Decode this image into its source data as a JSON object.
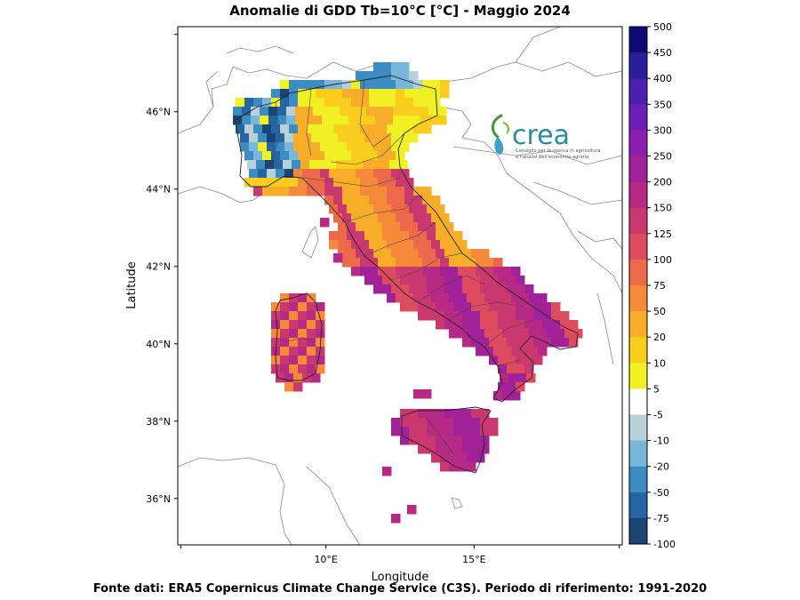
{
  "title": "Anomalie di GDD Tb=10°C [°C] - Maggio 2024",
  "footer": "Fonte dati: ERA5 Copernicus Climate Change Service (C3S). Periodo di riferimento: 1991-2020",
  "axes": {
    "xlabel": "Longitude",
    "ylabel": "Latitude",
    "lat_ticks": [
      {
        "value": 46,
        "label": "46°N"
      },
      {
        "value": 44,
        "label": "44°N"
      },
      {
        "value": 42,
        "label": "42°N"
      },
      {
        "value": 40,
        "label": "40°N"
      },
      {
        "value": 38,
        "label": "38°N"
      },
      {
        "value": 36,
        "label": "36°N"
      }
    ],
    "lon_ticks": [
      {
        "value": 10,
        "label": "10°E"
      },
      {
        "value": 15,
        "label": "15°E"
      }
    ],
    "lon_range": [
      5.0,
      20.0
    ],
    "lat_range": [
      34.8,
      48.2
    ]
  },
  "colorbar": {
    "labels": [
      "500",
      "450",
      "400",
      "350",
      "300",
      "250",
      "200",
      "150",
      "125",
      "100",
      "75",
      "50",
      "20",
      "10",
      "5",
      "-5",
      "-10",
      "-20",
      "-50",
      "-75",
      "-100"
    ],
    "colors": [
      "#0b0b73",
      "#2a1d9c",
      "#4b1fb0",
      "#6c1fb8",
      "#8a1fb0",
      "#a12298",
      "#b62a86",
      "#c9386f",
      "#dc4c5e",
      "#ec6a4a",
      "#f48a3a",
      "#f8ad2a",
      "#f8cd1d",
      "#f1f025",
      "#ffffff",
      "#b8d0d8",
      "#79b7da",
      "#3d8cc1",
      "#2565a4",
      "#1a4573"
    ]
  },
  "logo": {
    "name": "crea",
    "subtitle_line1": "Consiglio per la ricerca in agricoltura",
    "subtitle_line2": "e l'analisi dell'economia agraria"
  },
  "map_region": "Italy"
}
